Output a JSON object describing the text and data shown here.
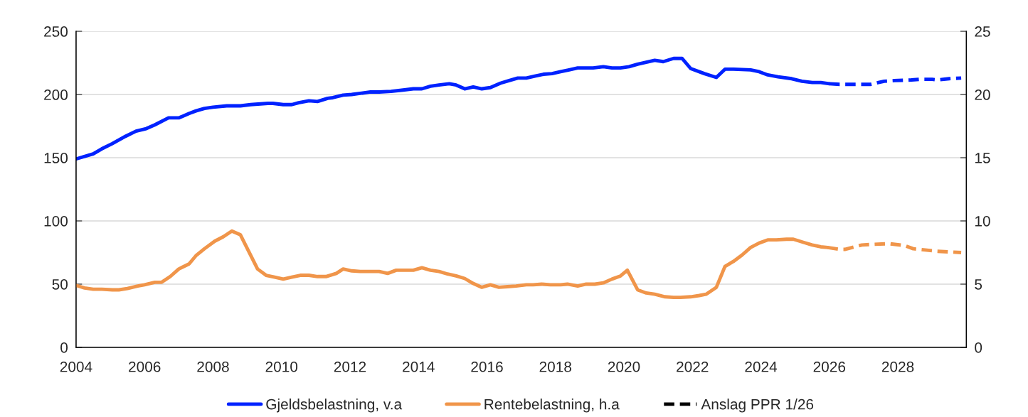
{
  "chart_data": {
    "type": "line",
    "xlim": [
      2004,
      2030
    ],
    "xticks": [
      2004,
      2006,
      2008,
      2010,
      2012,
      2014,
      2016,
      2018,
      2020,
      2022,
      2024,
      2026,
      2028
    ],
    "ylim": [
      0,
      250
    ],
    "yticks": [
      0,
      50,
      100,
      150,
      200,
      250
    ],
    "y2lim": [
      0,
      25
    ],
    "y2ticks": [
      0,
      5,
      10,
      15,
      20,
      25
    ],
    "grid": "y",
    "legend": "bottom",
    "series": [
      {
        "name": "Gjeldsbelastning, v.a",
        "color": "#0022ff",
        "line_style": "solid",
        "x": [
          2004.0,
          2004.5,
          2004.75,
          2005.05,
          2005.45,
          2005.75,
          2006.05,
          2006.3,
          2006.7,
          2007.0,
          2007.3,
          2007.5,
          2007.75,
          2008.0,
          2008.4,
          2008.6,
          2008.8,
          2009.1,
          2009.6,
          2009.75,
          2010.05,
          2010.3,
          2010.5,
          2010.8,
          2011.05,
          2011.35,
          2011.5,
          2011.8,
          2012.05,
          2012.6,
          2012.85,
          2013.2,
          2013.55,
          2013.85,
          2014.1,
          2014.35,
          2014.6,
          2014.9,
          2015.1,
          2015.35,
          2015.6,
          2015.85,
          2016.1,
          2016.4,
          2016.65,
          2016.9,
          2017.15,
          2017.4,
          2017.65,
          2017.9,
          2018.15,
          2018.4,
          2018.65,
          2019.1,
          2019.4,
          2019.65,
          2019.9,
          2020.15,
          2020.4,
          2020.65,
          2020.9,
          2021.15,
          2021.45,
          2021.7,
          2021.95,
          2022.35,
          2022.7,
          2022.95,
          2023.2,
          2023.7,
          2023.95,
          2024.2,
          2024.5,
          2024.9,
          2025.2,
          2025.5,
          2025.75,
          2026.0
        ],
        "values": [
          149,
          153,
          157,
          161,
          167,
          171,
          173,
          176,
          181.5,
          181.5,
          185,
          187,
          189,
          190,
          191,
          191,
          191,
          192,
          193,
          193,
          192,
          192,
          193.5,
          195,
          194.5,
          197,
          197.5,
          199.5,
          200,
          202,
          202,
          202.5,
          203.5,
          204.5,
          204.5,
          206.5,
          207.5,
          208.5,
          207.5,
          204.5,
          206,
          204.5,
          205.5,
          209,
          211,
          213,
          213,
          214.5,
          216,
          216.5,
          218,
          219.5,
          221,
          221,
          222,
          221,
          221,
          222,
          224,
          225.5,
          227,
          226,
          228.5,
          228.5,
          220.5,
          216.5,
          213.5,
          220,
          220,
          219.5,
          218,
          215.5,
          214,
          212.5,
          210.5,
          209.5,
          209.5,
          208.5
        ]
      },
      {
        "color": "#0022ff",
        "line_style": "dashed",
        "x": [
          2026.0,
          2026.3,
          2026.55,
          2026.95,
          2027.2,
          2027.6,
          2027.9,
          2028.4,
          2028.65,
          2029.0,
          2029.15,
          2029.5,
          2029.85
        ],
        "values": [
          208.5,
          208,
          208,
          208,
          208,
          210.5,
          211,
          211.5,
          212,
          212,
          211.5,
          212.5,
          213
        ]
      },
      {
        "name": "Rentebelastning, h.a",
        "color": "#f0954a",
        "line_style": "solid",
        "axis": "y2",
        "x": [
          2004.0,
          2004.25,
          2004.5,
          2004.75,
          2005.06,
          2005.25,
          2005.5,
          2005.8,
          2006.0,
          2006.3,
          2006.5,
          2006.75,
          2007.0,
          2007.3,
          2007.5,
          2007.75,
          2008.05,
          2008.3,
          2008.55,
          2008.8,
          2009.05,
          2009.3,
          2009.55,
          2009.8,
          2010.05,
          2010.3,
          2010.55,
          2010.8,
          2011.05,
          2011.3,
          2011.6,
          2011.8,
          2012.05,
          2012.3,
          2012.55,
          2012.85,
          2013.1,
          2013.35,
          2013.85,
          2014.1,
          2014.35,
          2014.6,
          2014.85,
          2015.1,
          2015.35,
          2015.6,
          2015.85,
          2016.1,
          2016.35,
          2016.6,
          2016.85,
          2017.15,
          2017.35,
          2017.6,
          2017.85,
          2018.15,
          2018.35,
          2018.65,
          2018.9,
          2019.15,
          2019.4,
          2019.65,
          2019.9,
          2020.1,
          2020.4,
          2020.65,
          2020.9,
          2021.2,
          2021.45,
          2021.65,
          2021.95,
          2022.2,
          2022.4,
          2022.7,
          2022.95,
          2023.2,
          2023.45,
          2023.7,
          2023.95,
          2024.2,
          2024.45,
          2024.75,
          2024.95,
          2025.25,
          2025.5,
          2025.75,
          2025.95
        ],
        "values": [
          4.9,
          4.7,
          4.6,
          4.6,
          4.55,
          4.55,
          4.65,
          4.85,
          4.95,
          5.15,
          5.15,
          5.6,
          6.2,
          6.6,
          7.25,
          7.8,
          8.4,
          8.75,
          9.2,
          8.9,
          7.55,
          6.2,
          5.7,
          5.55,
          5.4,
          5.55,
          5.7,
          5.7,
          5.6,
          5.6,
          5.85,
          6.2,
          6.05,
          6.0,
          6.0,
          6.0,
          5.85,
          6.1,
          6.1,
          6.3,
          6.1,
          6.0,
          5.8,
          5.65,
          5.45,
          5.05,
          4.75,
          4.95,
          4.75,
          4.8,
          4.85,
          4.95,
          4.95,
          5.0,
          4.95,
          4.95,
          5.0,
          4.85,
          5.0,
          5.0,
          5.1,
          5.4,
          5.65,
          6.1,
          4.55,
          4.3,
          4.2,
          4.0,
          3.95,
          3.95,
          4.0,
          4.1,
          4.2,
          4.75,
          6.4,
          6.8,
          7.3,
          7.9,
          8.25,
          8.5,
          8.5,
          8.55,
          8.55,
          8.3,
          8.1,
          7.95,
          7.9
        ]
      },
      {
        "color": "#f0954a",
        "line_style": "dashed",
        "axis": "y2",
        "x": [
          2025.95,
          2026.3,
          2026.45,
          2026.95,
          2027.3,
          2027.75,
          2028.2,
          2028.45,
          2028.8,
          2029.15,
          2029.5,
          2029.85
        ],
        "values": [
          7.9,
          7.75,
          7.75,
          8.1,
          8.15,
          8.2,
          8.05,
          7.8,
          7.7,
          7.6,
          7.55,
          7.5
        ]
      },
      {
        "name": "Anslag PPR 1/26",
        "color": "#000000",
        "line_style": "dashed"
      }
    ]
  }
}
